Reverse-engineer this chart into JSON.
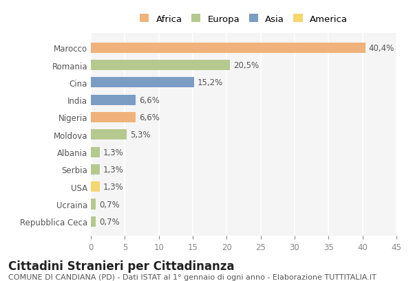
{
  "countries": [
    "Marocco",
    "Romania",
    "Cina",
    "India",
    "Nigeria",
    "Moldova",
    "Albania",
    "Serbia",
    "USA",
    "Ucraina",
    "Repubblica Ceca"
  ],
  "values": [
    40.4,
    20.5,
    15.2,
    6.6,
    6.6,
    5.3,
    1.3,
    1.3,
    1.3,
    0.7,
    0.7
  ],
  "labels": [
    "40,4%",
    "20,5%",
    "15,2%",
    "6,6%",
    "6,6%",
    "5,3%",
    "1,3%",
    "1,3%",
    "1,3%",
    "0,7%",
    "0,7%"
  ],
  "colors": [
    "#F0B27A",
    "#B5C98E",
    "#7B9DC4",
    "#7B9DC4",
    "#F0B27A",
    "#B5C98E",
    "#B5C98E",
    "#B5C98E",
    "#F5D76E",
    "#B5C98E",
    "#B5C98E"
  ],
  "legend": [
    {
      "label": "Africa",
      "color": "#F0B27A"
    },
    {
      "label": "Europa",
      "color": "#B5C98E"
    },
    {
      "label": "Asia",
      "color": "#7B9DC4"
    },
    {
      "label": "America",
      "color": "#F5D76E"
    }
  ],
  "xlim": [
    0,
    45
  ],
  "xticks": [
    0,
    5,
    10,
    15,
    20,
    25,
    30,
    35,
    40,
    45
  ],
  "title": "Cittadini Stranieri per Cittadinanza",
  "subtitle": "COMUNE DI CANDIANA (PD) - Dati ISTAT al 1° gennaio di ogni anno - Elaborazione TUTTITALIA.IT",
  "bg_color": "#ffffff",
  "plot_bg_color": "#f5f5f5",
  "grid_color": "#ffffff",
  "bar_height": 0.6,
  "title_fontsize": 12,
  "subtitle_fontsize": 8,
  "label_fontsize": 8.5,
  "tick_fontsize": 8.5,
  "legend_fontsize": 9.5
}
